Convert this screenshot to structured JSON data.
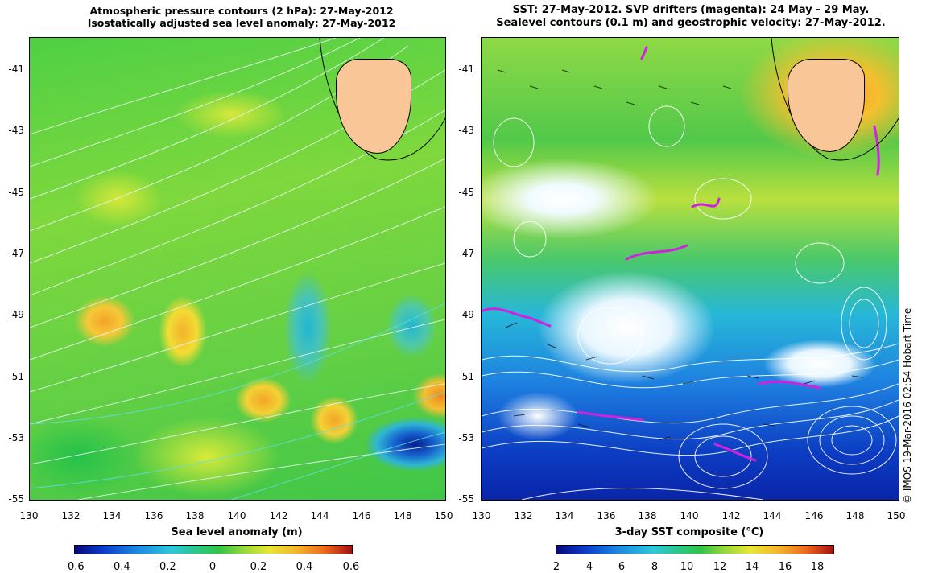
{
  "left_panel": {
    "title_line1": "Atmospheric pressure contours (2 hPa): 27-May-2012",
    "title_line2": "Isostatically adjusted sea level anomaly: 27-May-2012",
    "x_axis_title": "Sea level anomaly (m)",
    "colorbar_ticks": [
      "-0.6",
      "-0.4",
      "-0.2",
      "0",
      "0.2",
      "0.4",
      "0.6"
    ],
    "colors": {
      "land": "#f9c697",
      "contour": "#e8f3f0"
    }
  },
  "right_panel": {
    "title_line1": "SST: 27-May-2012. SVP drifters (magenta): 24 May - 29 May.",
    "title_line2": "Sealevel contours (0.1 m) and geostrophic velocity: 27-May-2012.",
    "x_axis_title": "3-day SST composite (°C)",
    "colorbar_ticks": [
      "2",
      "4",
      "6",
      "8",
      "10",
      "12",
      "14",
      "16",
      "18"
    ],
    "colors": {
      "land": "#f9c697",
      "drifter": "#d020e0"
    }
  },
  "latitude_ticks": [
    "-41",
    "-43",
    "-45",
    "-47",
    "-49",
    "-51",
    "-53",
    "-55"
  ],
  "longitude_ticks": [
    "130",
    "132",
    "134",
    "136",
    "138",
    "140",
    "142",
    "144",
    "146",
    "148",
    "150"
  ],
  "credit": "© IMOS 19-Mar-2016 02:54 Hobart Time"
}
